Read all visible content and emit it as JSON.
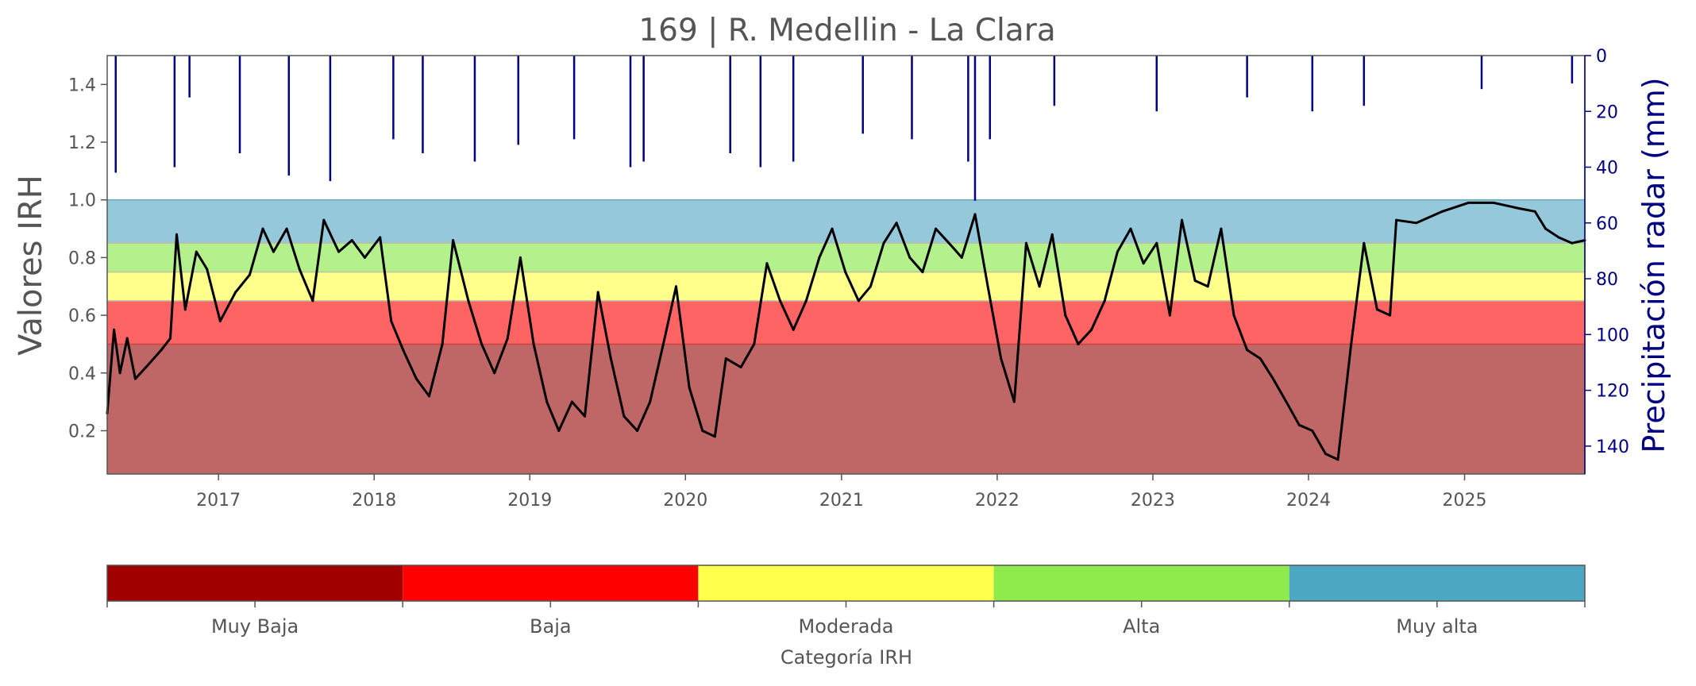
{
  "chart_data": {
    "type": "line",
    "title": "169 | R. Medellin - La Clara",
    "ylabel": "Valores IRH",
    "y2label": "Precipitación radar (mm)",
    "x_range": [
      "2016-04-15",
      "2025-10-10"
    ],
    "ylim": [
      0.05,
      1.5
    ],
    "y2lim": [
      150,
      0
    ],
    "y2_inverted": true,
    "x_ticks": [
      "2017",
      "2018",
      "2019",
      "2020",
      "2021",
      "2022",
      "2023",
      "2024",
      "2025"
    ],
    "y_ticks": [
      "0.2",
      "0.4",
      "0.6",
      "0.8",
      "1.0",
      "1.2",
      "1.4"
    ],
    "y2_ticks": [
      "0",
      "20",
      "40",
      "60",
      "80",
      "100",
      "120",
      "140"
    ],
    "grid": false,
    "bands": [
      {
        "name": "Muy Baja",
        "from": 0.05,
        "to": 0.5,
        "color": "#bf6666"
      },
      {
        "name": "Baja",
        "from": 0.5,
        "to": 0.65,
        "color": "#ff6464"
      },
      {
        "name": "Moderada",
        "from": 0.65,
        "to": 0.75,
        "color": "#ffff8c"
      },
      {
        "name": "Alta",
        "from": 0.75,
        "to": 0.85,
        "color": "#b4f08c"
      },
      {
        "name": "Muy alta",
        "from": 0.85,
        "to": 1.0,
        "color": "#96c8dc"
      }
    ],
    "series": [
      {
        "axis": "left",
        "color": "#000000",
        "points": [
          [
            "2016-04-15",
            0.26
          ],
          [
            "2016-05-01",
            0.55
          ],
          [
            "2016-05-15",
            0.4
          ],
          [
            "2016-06-01",
            0.52
          ],
          [
            "2016-06-20",
            0.38
          ],
          [
            "2016-07-15",
            0.42
          ],
          [
            "2016-08-20",
            0.48
          ],
          [
            "2016-09-10",
            0.52
          ],
          [
            "2016-09-25",
            0.88
          ],
          [
            "2016-10-15",
            0.62
          ],
          [
            "2016-11-10",
            0.82
          ],
          [
            "2016-12-05",
            0.76
          ],
          [
            "2017-01-05",
            0.58
          ],
          [
            "2017-02-10",
            0.68
          ],
          [
            "2017-03-15",
            0.74
          ],
          [
            "2017-04-15",
            0.9
          ],
          [
            "2017-05-10",
            0.82
          ],
          [
            "2017-06-10",
            0.9
          ],
          [
            "2017-07-10",
            0.76
          ],
          [
            "2017-08-10",
            0.65
          ],
          [
            "2017-09-05",
            0.93
          ],
          [
            "2017-10-10",
            0.82
          ],
          [
            "2017-11-10",
            0.86
          ],
          [
            "2017-12-10",
            0.8
          ],
          [
            "2018-01-15",
            0.87
          ],
          [
            "2018-02-10",
            0.58
          ],
          [
            "2018-03-10",
            0.48
          ],
          [
            "2018-04-10",
            0.38
          ],
          [
            "2018-05-10",
            0.32
          ],
          [
            "2018-06-10",
            0.5
          ],
          [
            "2018-07-05",
            0.86
          ],
          [
            "2018-08-10",
            0.65
          ],
          [
            "2018-09-10",
            0.5
          ],
          [
            "2018-10-10",
            0.4
          ],
          [
            "2018-11-10",
            0.52
          ],
          [
            "2018-12-10",
            0.8
          ],
          [
            "2019-01-10",
            0.5
          ],
          [
            "2019-02-10",
            0.3
          ],
          [
            "2019-03-10",
            0.2
          ],
          [
            "2019-04-10",
            0.3
          ],
          [
            "2019-05-10",
            0.25
          ],
          [
            "2019-06-10",
            0.68
          ],
          [
            "2019-07-10",
            0.45
          ],
          [
            "2019-08-10",
            0.25
          ],
          [
            "2019-09-10",
            0.2
          ],
          [
            "2019-10-10",
            0.3
          ],
          [
            "2019-11-10",
            0.5
          ],
          [
            "2019-12-10",
            0.7
          ],
          [
            "2020-01-10",
            0.35
          ],
          [
            "2020-02-10",
            0.2
          ],
          [
            "2020-03-10",
            0.18
          ],
          [
            "2020-04-05",
            0.45
          ],
          [
            "2020-05-10",
            0.42
          ],
          [
            "2020-06-10",
            0.5
          ],
          [
            "2020-07-10",
            0.78
          ],
          [
            "2020-08-10",
            0.65
          ],
          [
            "2020-09-10",
            0.55
          ],
          [
            "2020-10-10",
            0.65
          ],
          [
            "2020-11-10",
            0.8
          ],
          [
            "2020-12-10",
            0.9
          ],
          [
            "2021-01-10",
            0.75
          ],
          [
            "2021-02-10",
            0.65
          ],
          [
            "2021-03-10",
            0.7
          ],
          [
            "2021-04-10",
            0.85
          ],
          [
            "2021-05-10",
            0.92
          ],
          [
            "2021-06-10",
            0.8
          ],
          [
            "2021-07-10",
            0.75
          ],
          [
            "2021-08-10",
            0.9
          ],
          [
            "2021-09-10",
            0.85
          ],
          [
            "2021-10-10",
            0.8
          ],
          [
            "2021-11-10",
            0.95
          ],
          [
            "2021-12-10",
            0.7
          ],
          [
            "2022-01-10",
            0.45
          ],
          [
            "2022-02-10",
            0.3
          ],
          [
            "2022-03-10",
            0.85
          ],
          [
            "2022-04-10",
            0.7
          ],
          [
            "2022-05-10",
            0.88
          ],
          [
            "2022-06-10",
            0.6
          ],
          [
            "2022-07-10",
            0.5
          ],
          [
            "2022-08-10",
            0.55
          ],
          [
            "2022-09-10",
            0.65
          ],
          [
            "2022-10-10",
            0.82
          ],
          [
            "2022-11-10",
            0.9
          ],
          [
            "2022-12-10",
            0.78
          ],
          [
            "2023-01-10",
            0.85
          ],
          [
            "2023-02-10",
            0.6
          ],
          [
            "2023-03-10",
            0.93
          ],
          [
            "2023-04-10",
            0.72
          ],
          [
            "2023-05-10",
            0.7
          ],
          [
            "2023-06-10",
            0.9
          ],
          [
            "2023-07-10",
            0.6
          ],
          [
            "2023-08-10",
            0.48
          ],
          [
            "2023-09-10",
            0.45
          ],
          [
            "2023-10-10",
            0.38
          ],
          [
            "2023-11-10",
            0.3
          ],
          [
            "2023-12-10",
            0.22
          ],
          [
            "2024-01-10",
            0.2
          ],
          [
            "2024-02-10",
            0.12
          ],
          [
            "2024-03-10",
            0.1
          ],
          [
            "2024-04-10",
            0.5
          ],
          [
            "2024-05-10",
            0.85
          ],
          [
            "2024-06-10",
            0.62
          ],
          [
            "2024-07-10",
            0.6
          ],
          [
            "2024-07-25",
            0.93
          ],
          [
            "2024-09-10",
            0.92
          ],
          [
            "2024-11-10",
            0.96
          ],
          [
            "2025-01-10",
            0.99
          ],
          [
            "2025-03-10",
            0.99
          ],
          [
            "2025-05-10",
            0.97
          ],
          [
            "2025-06-15",
            0.96
          ],
          [
            "2025-07-10",
            0.9
          ],
          [
            "2025-08-10",
            0.87
          ],
          [
            "2025-09-10",
            0.85
          ],
          [
            "2025-10-10",
            0.86
          ]
        ]
      },
      {
        "axis": "right",
        "color": "#000080",
        "points": [
          [
            "2016-05-05",
            42
          ],
          [
            "2016-09-20",
            40
          ],
          [
            "2016-10-25",
            15
          ],
          [
            "2017-02-20",
            35
          ],
          [
            "2017-06-15",
            43
          ],
          [
            "2017-09-20",
            45
          ],
          [
            "2018-02-15",
            30
          ],
          [
            "2018-04-25",
            35
          ],
          [
            "2018-08-25",
            38
          ],
          [
            "2018-12-05",
            32
          ],
          [
            "2019-04-15",
            30
          ],
          [
            "2019-08-25",
            40
          ],
          [
            "2019-09-25",
            38
          ],
          [
            "2020-04-15",
            35
          ],
          [
            "2020-06-25",
            40
          ],
          [
            "2020-09-10",
            38
          ],
          [
            "2021-02-20",
            28
          ],
          [
            "2021-06-15",
            30
          ],
          [
            "2021-10-25",
            38
          ],
          [
            "2021-11-10",
            52
          ],
          [
            "2021-12-15",
            30
          ],
          [
            "2022-05-15",
            18
          ],
          [
            "2023-01-10",
            20
          ],
          [
            "2023-08-10",
            15
          ],
          [
            "2024-01-10",
            20
          ],
          [
            "2024-05-10",
            18
          ],
          [
            "2025-02-10",
            12
          ],
          [
            "2025-09-10",
            10
          ]
        ]
      }
    ],
    "colorbar": {
      "title": "Categoría IRH",
      "categories": [
        "Muy Baja",
        "Baja",
        "Moderada",
        "Alta",
        "Muy alta"
      ],
      "colors": [
        "#a00000",
        "#ff0000",
        "#ffff4c",
        "#8fea4c",
        "#4ca8c2"
      ]
    }
  }
}
